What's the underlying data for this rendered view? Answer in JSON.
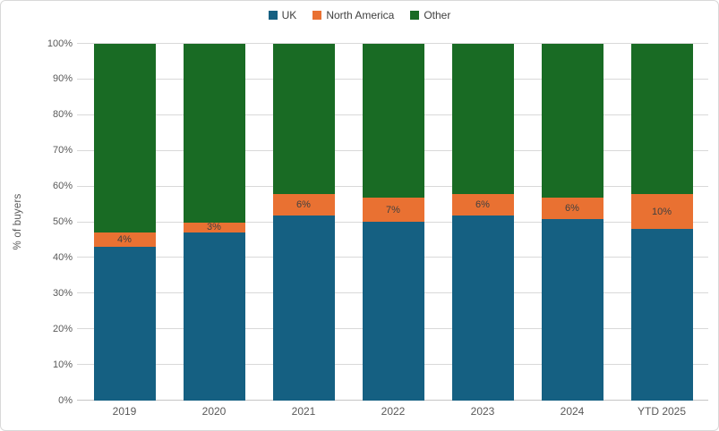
{
  "chart_data": {
    "type": "bar",
    "stacked": true,
    "title": "",
    "categories": [
      "2019",
      "2020",
      "2021",
      "2022",
      "2023",
      "2024",
      "YTD 2025"
    ],
    "series": [
      {
        "name": "UK",
        "color": "#156082",
        "values": [
          43,
          47,
          52,
          50,
          52,
          51,
          48
        ]
      },
      {
        "name": "North America",
        "color": "#E97132",
        "values": [
          4,
          3,
          6,
          7,
          6,
          6,
          10
        ]
      },
      {
        "name": "Other",
        "color": "#196B24",
        "values": [
          53,
          50,
          42,
          43,
          42,
          43,
          42
        ]
      }
    ],
    "data_labels": {
      "series": "North America",
      "values": [
        "4%",
        "3%",
        "6%",
        "7%",
        "6%",
        "6%",
        "10%"
      ]
    },
    "xlabel": "",
    "ylabel": "% of buyers",
    "ylim": [
      0,
      100
    ],
    "ytick_step": 10,
    "ytick_labels": [
      "0%",
      "10%",
      "20%",
      "30%",
      "40%",
      "50%",
      "60%",
      "70%",
      "80%",
      "90%",
      "100%"
    ],
    "grid": true,
    "legend_position": "top"
  },
  "colors": {
    "background": "#FFFFFF",
    "frame_border": "#D9D9D9",
    "gridline": "#D9D9D9",
    "axis_text": "#595959",
    "data_label_text": "#404040"
  }
}
